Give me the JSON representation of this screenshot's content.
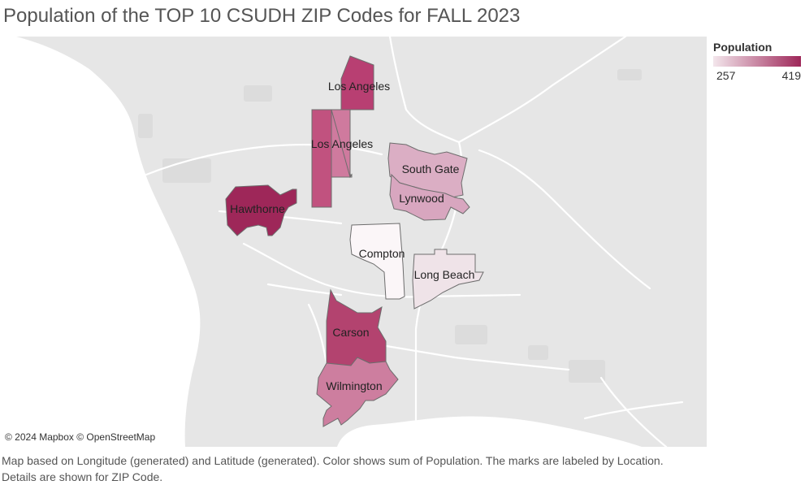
{
  "title": "Population of the TOP 10 CSUDH ZIP Codes for FALL 2023",
  "map": {
    "credits": "© 2024 Mapbox © OpenStreetMap",
    "colors": {
      "land": "#e6e6e6",
      "water": "#ffffff",
      "roads": "#ffffff",
      "park": "#dcdcdc",
      "outline": "#6d6d6d"
    },
    "regions": [
      {
        "label": "Los Angeles",
        "population": 392,
        "color": "#b83f72"
      },
      {
        "label": "Los Angeles",
        "population": 370,
        "color": "#c1527f"
      },
      {
        "label": "Los Angeles",
        "population": 325,
        "color": "#cf7a9e"
      },
      {
        "label": "South Gate",
        "population": 300,
        "color": "#dbaec4"
      },
      {
        "label": "Lynwood",
        "population": 305,
        "color": "#d8a6bf"
      },
      {
        "label": "Hawthorne",
        "population": 419,
        "color": "#9e2759"
      },
      {
        "label": "Compton",
        "population": 257,
        "color": "#fbf6f8"
      },
      {
        "label": "Long Beach",
        "population": 262,
        "color": "#efe3e8"
      },
      {
        "label": "Carson",
        "population": 385,
        "color": "#b3436f"
      },
      {
        "label": "Wilmington",
        "population": 330,
        "color": "#cd7e9f"
      }
    ]
  },
  "legend": {
    "title": "Population",
    "min": "257",
    "max": "419",
    "color_low": "#f3e6ec",
    "color_high": "#9e2759"
  },
  "caption": "Map based on Longitude (generated) and Latitude (generated).  Color shows sum of Population.  The marks are labeled by Location.  Details are shown for ZIP  Code."
}
